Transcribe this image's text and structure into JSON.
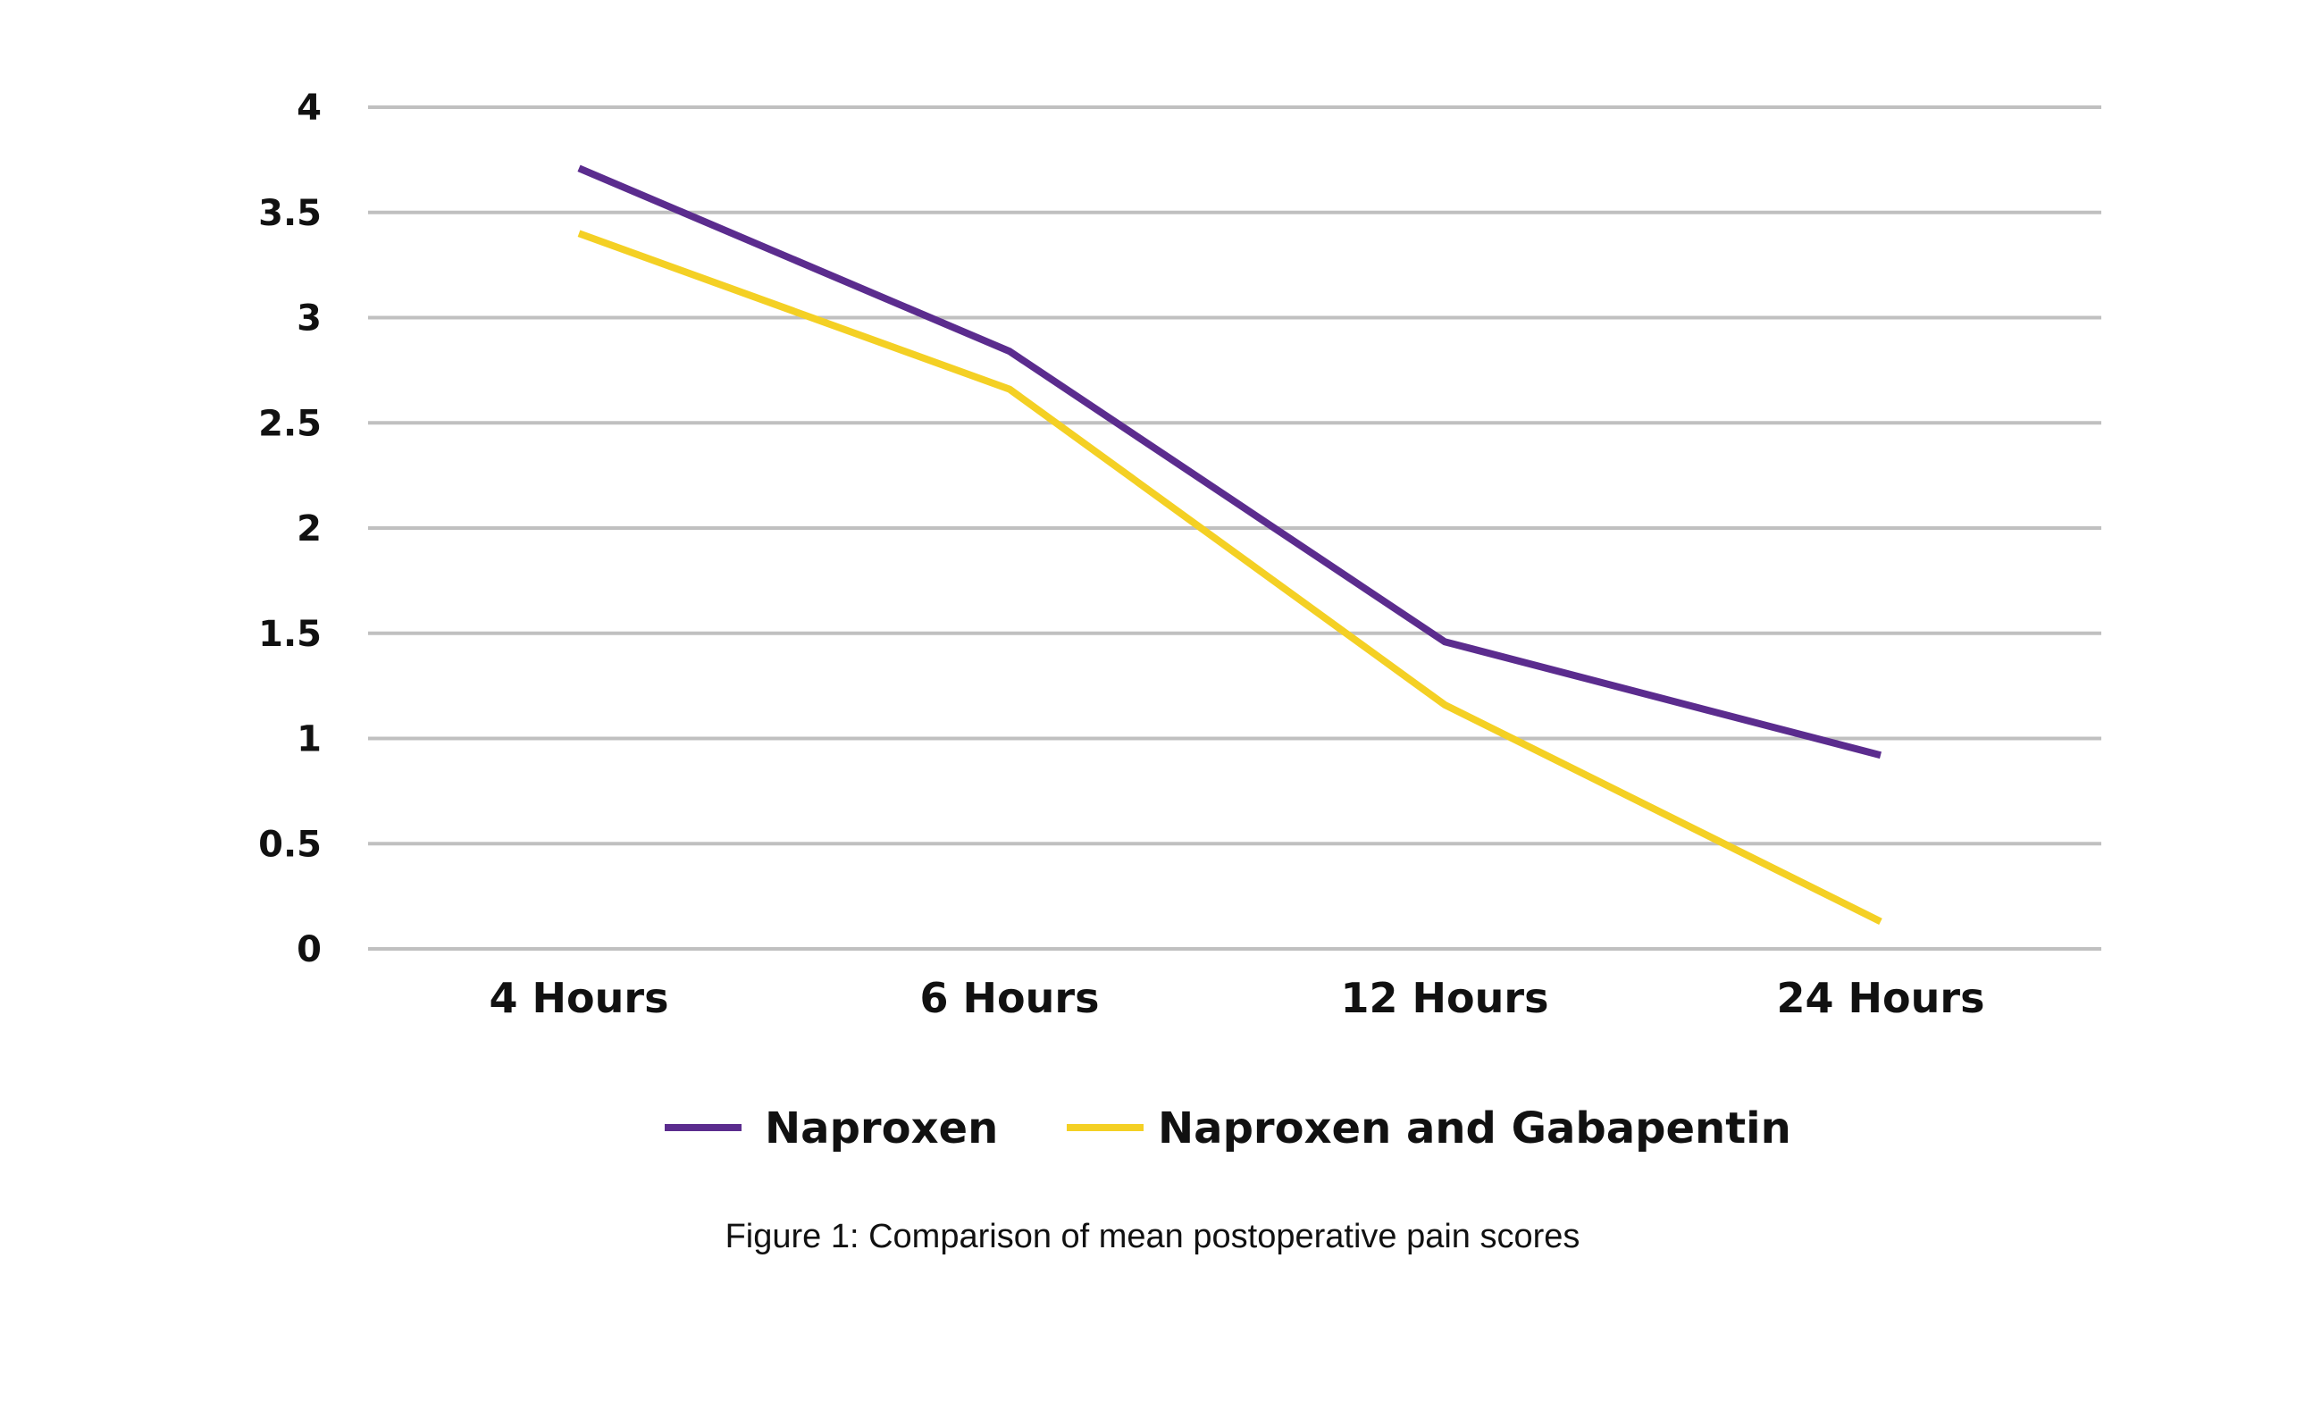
{
  "chart_data": {
    "type": "line",
    "categories": [
      "4 Hours",
      "6 Hours",
      "12 Hours",
      "24 Hours"
    ],
    "series": [
      {
        "name": "Naproxen",
        "values": [
          3.71,
          2.84,
          1.46,
          0.92
        ],
        "color": "#5b2c8e"
      },
      {
        "name": "Naproxen and Gabapentin",
        "values": [
          3.4,
          2.66,
          1.16,
          0.13
        ],
        "color": "#f4d024"
      }
    ],
    "ylim": [
      0,
      4
    ],
    "yticks": [
      0,
      0.5,
      1,
      1.5,
      2,
      2.5,
      3,
      3.5,
      4
    ],
    "ytick_labels": [
      "0",
      "0.5",
      "1",
      "1.5",
      "2",
      "2.5",
      "3",
      "3.5",
      "4"
    ],
    "grid": true,
    "grid_color": "#c0c0c0",
    "legend_position": "bottom",
    "xlabel": "",
    "ylabel": "",
    "title": ""
  },
  "caption": "Figure 1: Comparison of mean postoperative pain scores"
}
